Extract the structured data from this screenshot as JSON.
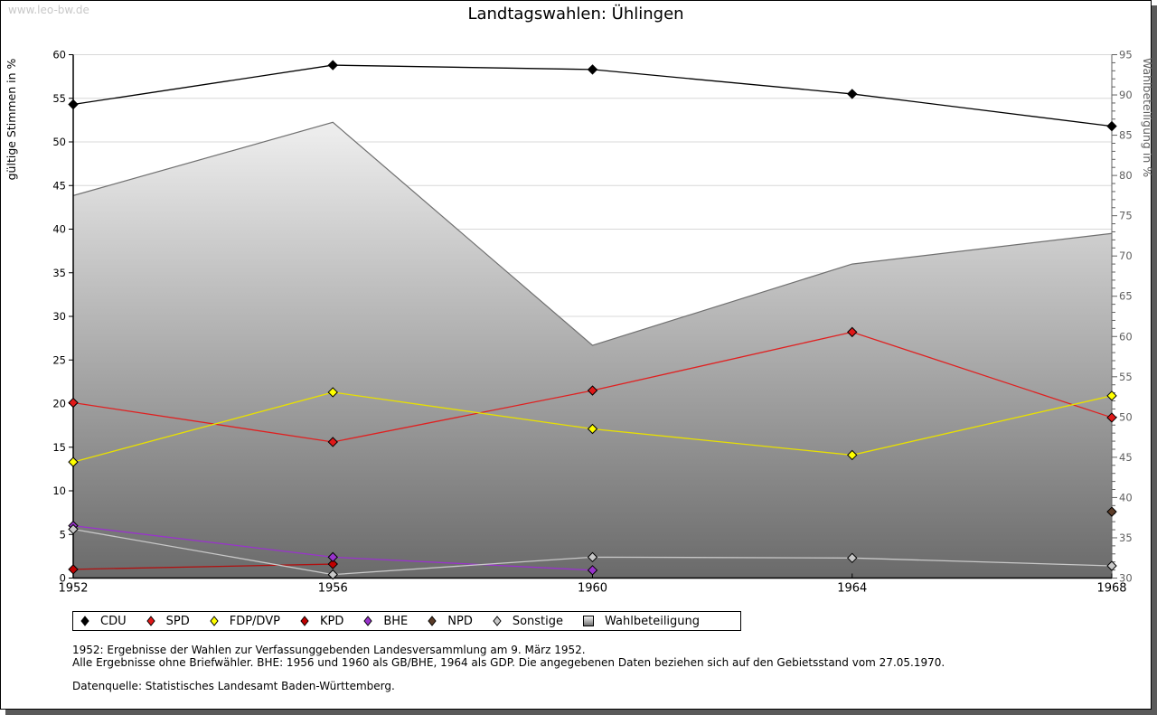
{
  "watermark": "www.leo-bw.de",
  "title": "Landtagswahlen: Ühlingen",
  "chart_data": {
    "type": "line",
    "title": "Landtagswahlen: Ühlingen",
    "xlabel": "",
    "ylabel": "gültige Stimmen in %",
    "y2label": "Wahlbeteiligung in %",
    "x": [
      1952,
      1956,
      1960,
      1964,
      1968
    ],
    "x_ticks": [
      "1952",
      "1956",
      "1960",
      "1964",
      "1968"
    ],
    "ylim": [
      0,
      60
    ],
    "y_ticks": [
      "0",
      "5",
      "10",
      "15",
      "20",
      "25",
      "30",
      "35",
      "40",
      "45",
      "50",
      "55",
      "60"
    ],
    "y2lim": [
      30,
      95
    ],
    "y2_ticks": [
      "30",
      "35",
      "40",
      "45",
      "50",
      "55",
      "60",
      "65",
      "70",
      "75",
      "80",
      "85",
      "90",
      "95"
    ],
    "grid": true,
    "legend_position": "bottom",
    "turnout": {
      "name": "Wahlbeteiligung",
      "type": "area",
      "axis": "right",
      "values": [
        77.5,
        86.6,
        58.9,
        69.0,
        72.8
      ]
    },
    "series": [
      {
        "name": "CDU",
        "color": "#000000",
        "line_color": "#000000",
        "values": [
          54.3,
          58.8,
          58.3,
          55.5,
          51.8
        ]
      },
      {
        "name": "SPD",
        "color": "#e01818",
        "line_color": "#e02020",
        "values": [
          20.1,
          15.6,
          21.5,
          28.2,
          18.4
        ]
      },
      {
        "name": "FDP/DVP",
        "color": "#ffff00",
        "line_color": "#e8e000",
        "values": [
          13.3,
          21.3,
          17.1,
          14.1,
          20.9
        ]
      },
      {
        "name": "KPD",
        "color": "#c00000",
        "line_color": "#b01010",
        "values": [
          1.0,
          1.6,
          null,
          null,
          null
        ]
      },
      {
        "name": "BHE",
        "color": "#9933cc",
        "line_color": "#9933cc",
        "values": [
          6.0,
          2.4,
          0.9,
          null,
          null
        ]
      },
      {
        "name": "NPD",
        "color": "#5c3c28",
        "line_color": "#5c3c28",
        "values": [
          null,
          null,
          null,
          null,
          7.6
        ]
      },
      {
        "name": "Sonstige",
        "color": "#c8c8c8",
        "line_color": "#c8c8c8",
        "values": [
          5.6,
          0.4,
          2.4,
          2.3,
          1.4
        ]
      }
    ]
  },
  "legend": [
    {
      "label": "CDU",
      "color": "#000000",
      "kind": "diamond"
    },
    {
      "label": "SPD",
      "color": "#e01818",
      "kind": "diamond"
    },
    {
      "label": "FDP/DVP",
      "color": "#ffff00",
      "kind": "diamond"
    },
    {
      "label": "KPD",
      "color": "#c00000",
      "kind": "diamond"
    },
    {
      "label": "BHE",
      "color": "#9933cc",
      "kind": "diamond"
    },
    {
      "label": "NPD",
      "color": "#5c3c28",
      "kind": "diamond"
    },
    {
      "label": "Sonstige",
      "color": "#c8c8c8",
      "kind": "diamond"
    },
    {
      "label": "Wahlbeteiligung",
      "color": "#a0a0a0",
      "kind": "box"
    }
  ],
  "notes": [
    "1952: Ergebnisse der Wahlen zur Verfassunggebenden Landesversammlung am 9. März 1952.",
    "Alle Ergebnisse ohne Briefwähler. BHE: 1956 und 1960 als GB/BHE, 1964 als GDP. Die angegebenen Daten beziehen sich auf den Gebietsstand vom 27.05.1970.",
    "",
    "Datenquelle: Statistisches Landesamt Baden-Württemberg."
  ]
}
